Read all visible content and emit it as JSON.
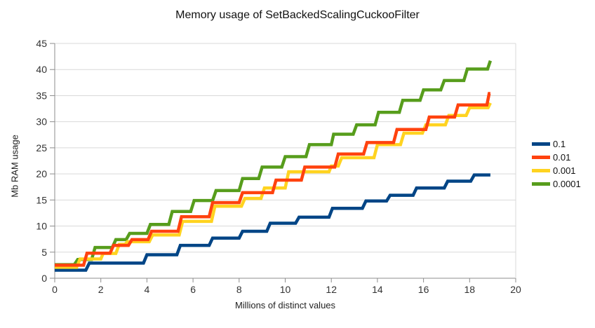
{
  "chart_data": {
    "type": "line",
    "subtype": "step",
    "title": "Memory usage of SetBackedScalingCuckooFilter",
    "xlabel": "Millions of distinct values",
    "ylabel": "Mb RAM usage",
    "xlim": [
      0,
      20
    ],
    "ylim": [
      0,
      45
    ],
    "x_ticks": [
      0,
      2,
      4,
      6,
      8,
      10,
      12,
      14,
      16,
      18,
      20
    ],
    "y_ticks": [
      0,
      5,
      10,
      15,
      20,
      25,
      30,
      35,
      40,
      45
    ],
    "grid": "horizontal",
    "grid_color": "#d9d9d9",
    "axis_color": "#8c8c8c",
    "tick_label_color": "#333333",
    "legend_position": "right",
    "line_width": 4.5,
    "draw_order": [
      "0.1",
      "0.0001",
      "0.001",
      "0.01"
    ],
    "series": [
      {
        "name": "0.1",
        "color": "#004586",
        "points": [
          [
            0,
            1.55
          ],
          [
            1.35,
            1.55
          ],
          [
            1.5,
            2.9
          ],
          [
            3.85,
            2.9
          ],
          [
            4.0,
            4.5
          ],
          [
            5.3,
            4.5
          ],
          [
            5.45,
            6.3
          ],
          [
            6.7,
            6.3
          ],
          [
            6.85,
            7.7
          ],
          [
            8.0,
            7.7
          ],
          [
            8.15,
            9.0
          ],
          [
            9.2,
            9.0
          ],
          [
            9.35,
            10.55
          ],
          [
            10.45,
            10.55
          ],
          [
            10.6,
            11.7
          ],
          [
            11.9,
            11.7
          ],
          [
            12.05,
            13.4
          ],
          [
            13.35,
            13.4
          ],
          [
            13.5,
            14.8
          ],
          [
            14.4,
            14.8
          ],
          [
            14.55,
            15.9
          ],
          [
            15.55,
            15.9
          ],
          [
            15.7,
            17.3
          ],
          [
            16.9,
            17.3
          ],
          [
            17.05,
            18.6
          ],
          [
            18.05,
            18.6
          ],
          [
            18.2,
            19.8
          ],
          [
            18.9,
            19.8
          ]
        ]
      },
      {
        "name": "0.01",
        "color": "#ff420e",
        "points": [
          [
            0,
            2.5
          ],
          [
            1.25,
            2.5
          ],
          [
            1.4,
            4.8
          ],
          [
            2.4,
            4.8
          ],
          [
            2.55,
            6.3
          ],
          [
            3.2,
            6.3
          ],
          [
            3.35,
            7.4
          ],
          [
            4.05,
            7.4
          ],
          [
            4.2,
            9.0
          ],
          [
            5.35,
            9.0
          ],
          [
            5.5,
            11.8
          ],
          [
            6.7,
            11.8
          ],
          [
            6.85,
            14.5
          ],
          [
            8.0,
            14.5
          ],
          [
            8.15,
            16.4
          ],
          [
            9.45,
            16.4
          ],
          [
            9.6,
            18.8
          ],
          [
            10.7,
            18.8
          ],
          [
            10.85,
            21.3
          ],
          [
            12.15,
            21.3
          ],
          [
            12.3,
            23.8
          ],
          [
            13.4,
            23.8
          ],
          [
            13.55,
            26.0
          ],
          [
            14.7,
            26.0
          ],
          [
            14.85,
            28.5
          ],
          [
            16.1,
            28.5
          ],
          [
            16.25,
            30.9
          ],
          [
            17.35,
            30.9
          ],
          [
            17.5,
            33.2
          ],
          [
            18.75,
            33.2
          ],
          [
            18.85,
            35.4
          ],
          [
            18.9,
            35.4
          ]
        ]
      },
      {
        "name": "0.001",
        "color": "#ffd320",
        "points": [
          [
            0,
            2.1
          ],
          [
            0.95,
            2.1
          ],
          [
            1.1,
            3.7
          ],
          [
            2.0,
            3.7
          ],
          [
            2.1,
            4.75
          ],
          [
            2.65,
            4.75
          ],
          [
            2.8,
            6.5
          ],
          [
            3.05,
            6.5
          ],
          [
            3.15,
            7.0
          ],
          [
            4.1,
            7.0
          ],
          [
            4.25,
            8.3
          ],
          [
            5.4,
            8.3
          ],
          [
            5.55,
            10.9
          ],
          [
            6.8,
            10.9
          ],
          [
            6.95,
            13.8
          ],
          [
            8.1,
            13.8
          ],
          [
            8.25,
            15.3
          ],
          [
            8.95,
            15.3
          ],
          [
            9.1,
            17.3
          ],
          [
            10.0,
            17.3
          ],
          [
            10.15,
            20.4
          ],
          [
            11.9,
            20.4
          ],
          [
            12.0,
            21.5
          ],
          [
            12.3,
            21.5
          ],
          [
            12.45,
            23.1
          ],
          [
            13.85,
            23.1
          ],
          [
            14.0,
            25.6
          ],
          [
            15.0,
            25.6
          ],
          [
            15.15,
            27.8
          ],
          [
            15.95,
            27.8
          ],
          [
            16.1,
            29.4
          ],
          [
            16.95,
            29.4
          ],
          [
            17.1,
            31.2
          ],
          [
            17.85,
            31.2
          ],
          [
            18.0,
            32.7
          ],
          [
            18.8,
            32.7
          ],
          [
            18.9,
            33.6
          ]
        ]
      },
      {
        "name": "0.0001",
        "color": "#579d1c",
        "points": [
          [
            0,
            2.6
          ],
          [
            0.85,
            2.6
          ],
          [
            1.0,
            3.6
          ],
          [
            1.6,
            3.6
          ],
          [
            1.75,
            5.9
          ],
          [
            2.5,
            5.9
          ],
          [
            2.65,
            7.4
          ],
          [
            3.1,
            7.4
          ],
          [
            3.25,
            8.6
          ],
          [
            4.0,
            8.6
          ],
          [
            4.15,
            10.3
          ],
          [
            4.95,
            10.3
          ],
          [
            5.1,
            12.8
          ],
          [
            5.9,
            12.8
          ],
          [
            6.05,
            14.9
          ],
          [
            6.85,
            14.9
          ],
          [
            7.0,
            16.8
          ],
          [
            8.0,
            16.8
          ],
          [
            8.15,
            19.1
          ],
          [
            8.85,
            19.1
          ],
          [
            9.0,
            21.3
          ],
          [
            9.85,
            21.3
          ],
          [
            10.0,
            23.3
          ],
          [
            10.9,
            23.3
          ],
          [
            11.05,
            25.6
          ],
          [
            12.0,
            25.6
          ],
          [
            12.1,
            27.6
          ],
          [
            12.95,
            27.6
          ],
          [
            13.1,
            29.4
          ],
          [
            13.9,
            29.4
          ],
          [
            14.05,
            31.8
          ],
          [
            14.95,
            31.8
          ],
          [
            15.1,
            34.1
          ],
          [
            15.85,
            34.1
          ],
          [
            16.0,
            36.1
          ],
          [
            16.75,
            36.1
          ],
          [
            16.9,
            37.9
          ],
          [
            17.75,
            37.9
          ],
          [
            17.9,
            40.1
          ],
          [
            18.78,
            40.1
          ],
          [
            18.9,
            41.7
          ]
        ]
      }
    ]
  },
  "legend": {
    "items": [
      {
        "label": "0.1",
        "color": "#004586"
      },
      {
        "label": "0.01",
        "color": "#ff420e"
      },
      {
        "label": "0.001",
        "color": "#ffd320"
      },
      {
        "label": "0.0001",
        "color": "#579d1c"
      }
    ]
  }
}
